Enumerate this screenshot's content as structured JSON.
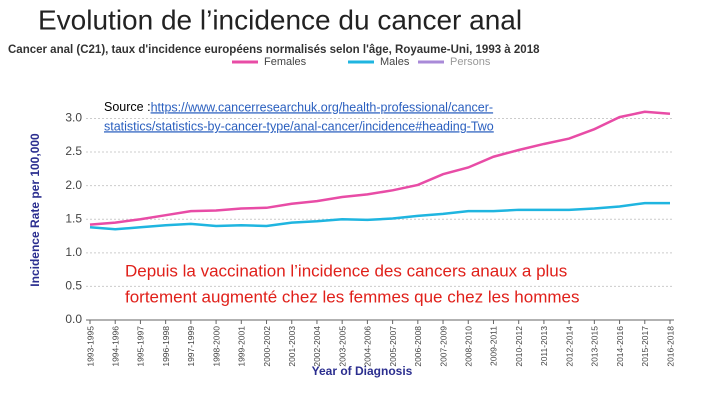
{
  "slide_title": "Evolution de l’incidence du cancer anal",
  "chart_data": {
    "type": "line",
    "title": "Cancer anal (C21), taux d'incidence européens normalisés selon l'âge, Royaume-Uni, 1993 à 2018",
    "xlabel": "Year of Diagnosis",
    "ylabel": "Incidence Rate per 100,000",
    "categories": [
      "1993-1995",
      "1994-1996",
      "1995-1997",
      "1996-1998",
      "1997-1999",
      "1998-2000",
      "1999-2001",
      "2000-2002",
      "2001-2003",
      "2002-2004",
      "2003-2005",
      "2004-2006",
      "2005-2007",
      "2006-2008",
      "2007-2009",
      "2008-2010",
      "2009-2011",
      "2010-2012",
      "2011-2013",
      "2012-2014",
      "2013-2015",
      "2014-2016",
      "2015-2017",
      "2016-2018"
    ],
    "series": [
      {
        "name": "Females",
        "color": "#e84ca6",
        "values": [
          1.42,
          1.45,
          1.5,
          1.56,
          1.62,
          1.63,
          1.66,
          1.67,
          1.73,
          1.77,
          1.83,
          1.87,
          1.93,
          2.01,
          2.17,
          2.27,
          2.43,
          2.53,
          2.62,
          2.7,
          2.84,
          3.02,
          3.1,
          3.07
        ]
      },
      {
        "name": "Males",
        "color": "#1fb5e0",
        "values": [
          1.38,
          1.35,
          1.38,
          1.41,
          1.43,
          1.4,
          1.41,
          1.4,
          1.45,
          1.47,
          1.5,
          1.49,
          1.51,
          1.55,
          1.58,
          1.62,
          1.62,
          1.64,
          1.64,
          1.64,
          1.66,
          1.69,
          1.74,
          1.74
        ]
      },
      {
        "name": "Persons",
        "color": "#a98ad8",
        "values": [
          null,
          null,
          null,
          null,
          null,
          null,
          null,
          null,
          null,
          null,
          null,
          null,
          null,
          null,
          null,
          null,
          null,
          null,
          null,
          null,
          null,
          null,
          null,
          null
        ]
      }
    ],
    "ylim": [
      0,
      3.2
    ],
    "yticks": [
      {
        "value": 0,
        "label": "0.0"
      },
      0.5,
      {
        "value": 1,
        "label": "1.0"
      },
      1.5,
      {
        "value": 2,
        "label": "2.0"
      },
      2.5,
      {
        "value": 3,
        "label": "3.0"
      }
    ],
    "grid": true,
    "source_label": "Source : ",
    "source_url": [
      "https://www.cancerresearchuk.org/health-professional/cancer-",
      "statistics/statistics-by-cancer-type/anal-cancer/incidence#heading-Two"
    ],
    "annotation": [
      "Depuis la vaccination l’incidence des cancers anaux a plus",
      "fortement augmenté chez les femmes que chez les hommes"
    ]
  }
}
